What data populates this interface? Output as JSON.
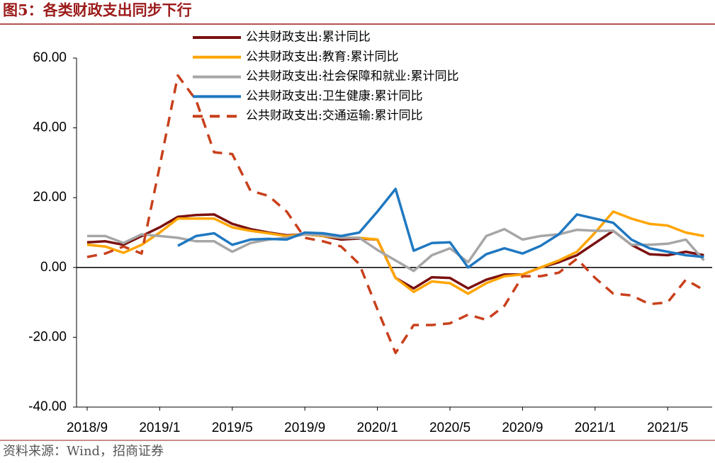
{
  "chart_data": {
    "type": "line",
    "title": "图5：各类财政支出同步下行",
    "source": "资料来源：Wind，招商证券",
    "categories": [
      "2018/9",
      null,
      null,
      null,
      "2019/1",
      null,
      null,
      null,
      "2019/5",
      null,
      null,
      null,
      "2019/9",
      null,
      null,
      null,
      "2020/1",
      null,
      null,
      null,
      "2020/5",
      null,
      null,
      null,
      "2020/9",
      null,
      null,
      null,
      "2021/1",
      null,
      null,
      null,
      "2021/5",
      null,
      null
    ],
    "ylim": [
      -40,
      60
    ],
    "yticks": [
      {
        "value": -40,
        "label": "-40.00"
      },
      {
        "value": -20,
        "label": "-20.00"
      },
      {
        "value": 0,
        "label": "0.00"
      },
      {
        "value": 20,
        "label": "20.00"
      },
      {
        "value": 40,
        "label": "40.00"
      },
      {
        "value": 60,
        "label": "60.00"
      }
    ],
    "series": [
      {
        "name": "公共财政支出:累计同比",
        "color": "#7b1010",
        "dash": false,
        "values": [
          7.2,
          7.5,
          6.5,
          9,
          11.5,
          14.5,
          15,
          15.2,
          12.5,
          11,
          10,
          9.2,
          9.5,
          9,
          8,
          8.3,
          8,
          -3,
          -6,
          -2.8,
          -3,
          -6,
          -3.5,
          -2,
          -2,
          0,
          1.5,
          3.5,
          7,
          10.5,
          6.5,
          3.8,
          3.5,
          4.5,
          3.5
        ]
      },
      {
        "name": "公共财政支出:教育:累计同比",
        "color": "#ffa500",
        "dash": false,
        "values": [
          6.5,
          6,
          4.2,
          6.5,
          10,
          14,
          14,
          14,
          11.5,
          10.5,
          9.8,
          9,
          9.5,
          9,
          8.5,
          8.5,
          8,
          -3,
          -7,
          -4,
          -4.5,
          -7.5,
          -4.5,
          -2.5,
          -2,
          0,
          2,
          4.5,
          10,
          16,
          14,
          12.5,
          12,
          10,
          9
        ]
      },
      {
        "name": "公共财政支出:社会保障和就业:累计同比",
        "color": "#a6a6a6",
        "dash": false,
        "values": [
          9,
          9,
          7,
          9.5,
          9,
          8.5,
          7.5,
          7.5,
          4.5,
          7,
          8,
          8.5,
          9.5,
          9.3,
          8.5,
          8.5,
          5,
          2,
          -1,
          3.5,
          5.5,
          1.5,
          9,
          11,
          8,
          9,
          9.5,
          10.8,
          10.5,
          10.5,
          6.5,
          6.5,
          6.8,
          8,
          2
        ]
      },
      {
        "name": "公共财政支出:卫生健康:累计同比",
        "color": "#1f78c1",
        "dash": false,
        "values": [
          null,
          null,
          null,
          null,
          null,
          6.2,
          9,
          9.8,
          6.5,
          8,
          8.2,
          8,
          10,
          9.8,
          9,
          10,
          16,
          22.5,
          4.8,
          7,
          7.2,
          0,
          3.8,
          5.5,
          4,
          6.2,
          9.5,
          15.2,
          14,
          12.8,
          8,
          5.5,
          4.5,
          3.5,
          3
        ]
      },
      {
        "name": "公共财政支出:交通运输:累计同比",
        "color": "#c8401c",
        "dash": true,
        "values": [
          3,
          4,
          6,
          4,
          29,
          55,
          48,
          33,
          32.5,
          22,
          20.5,
          16,
          8.5,
          7.5,
          6,
          1,
          -12,
          -24.5,
          -16.5,
          -16.5,
          -16,
          -13.5,
          -15,
          -11,
          -2.5,
          -2.5,
          -1.5,
          2.5,
          -3,
          -7.5,
          -8,
          -10.5,
          -10,
          -3.5,
          -6.5
        ]
      }
    ]
  }
}
